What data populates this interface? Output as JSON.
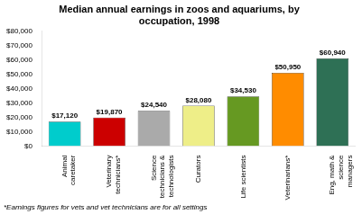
{
  "chart_data": {
    "type": "bar",
    "title": "Median annual earnings in zoos and aquariums, by\noccupation, 1998",
    "categories": [
      "Animal\ncaretaker",
      "Veterinary\ntechnicians*",
      "Science\ntechnicians &\ntechnologists",
      "Curators",
      "Life scientists",
      "Veterinarians*",
      "Eng, math &\nscience\nmanagers"
    ],
    "values": [
      17120,
      19870,
      24540,
      28080,
      34530,
      50950,
      60940
    ],
    "value_labels": [
      "$17,120",
      "$19,870",
      "$24,540",
      "$28,080",
      "$34,530",
      "$50,950",
      "$60,940"
    ],
    "colors": [
      "#00CCCC",
      "#CC0000",
      "#AAAAAA",
      "#EEEE88",
      "#669922",
      "#FF8C00",
      "#2E7055"
    ],
    "ylim": [
      0,
      80000
    ],
    "yticks": [
      {
        "value": 0,
        "label": "$0"
      },
      {
        "value": 10000,
        "label": "$10,000"
      },
      {
        "value": 20000,
        "label": "$20,000"
      },
      {
        "value": 30000,
        "label": "$30,000"
      },
      {
        "value": 40000,
        "label": "$40,000"
      },
      {
        "value": 50000,
        "label": "$50,000"
      },
      {
        "value": 60000,
        "label": "$60,000"
      },
      {
        "value": 70000,
        "label": "$70,000"
      },
      {
        "value": 80000,
        "label": "$80,000"
      }
    ],
    "footnote": "*Earnings figures for vets and vet technicians are for all settings",
    "data_labels": true,
    "grid": false
  }
}
